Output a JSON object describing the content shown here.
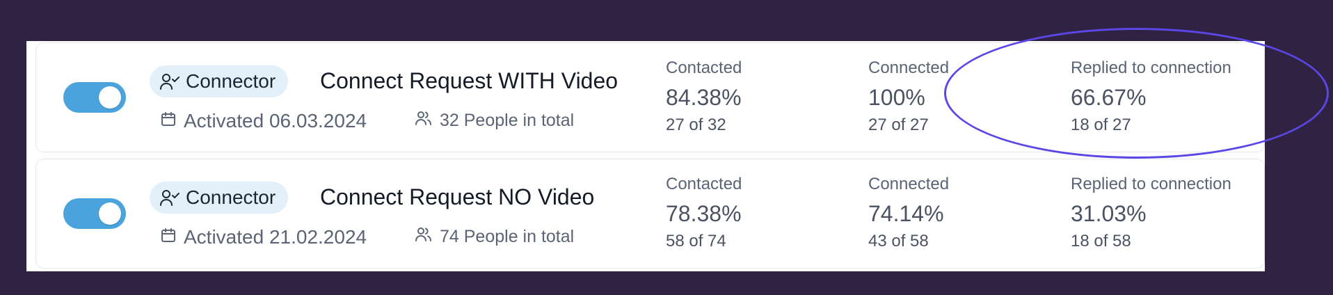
{
  "colors": {
    "background": "#2f2243",
    "toggle_on": "#4aa3dd",
    "badge_bg": "#e3f0fa",
    "highlight": "#5b47e5"
  },
  "campaigns": [
    {
      "enabled": true,
      "type_label": "Connector",
      "type_icon": "user-check-icon",
      "name": "Connect Request WITH Video",
      "activated": "Activated 06.03.2024",
      "people": "32 People in total",
      "stats": [
        {
          "label": "Contacted",
          "percent": "84.38%",
          "count": "27 of 32"
        },
        {
          "label": "Connected",
          "percent": "100%",
          "count": "27 of 27"
        },
        {
          "label": "Replied to connection",
          "percent": "66.67%",
          "count": "18 of 27"
        }
      ]
    },
    {
      "enabled": true,
      "type_label": "Connector",
      "type_icon": "user-check-icon",
      "name": "Connect Request NO Video",
      "activated": "Activated 21.02.2024",
      "people": "74 People in total",
      "stats": [
        {
          "label": "Contacted",
          "percent": "78.38%",
          "count": "58 of 74"
        },
        {
          "label": "Connected",
          "percent": "74.14%",
          "count": "43 of 58"
        },
        {
          "label": "Replied to connection",
          "percent": "31.03%",
          "count": "18 of 58"
        }
      ]
    }
  ]
}
